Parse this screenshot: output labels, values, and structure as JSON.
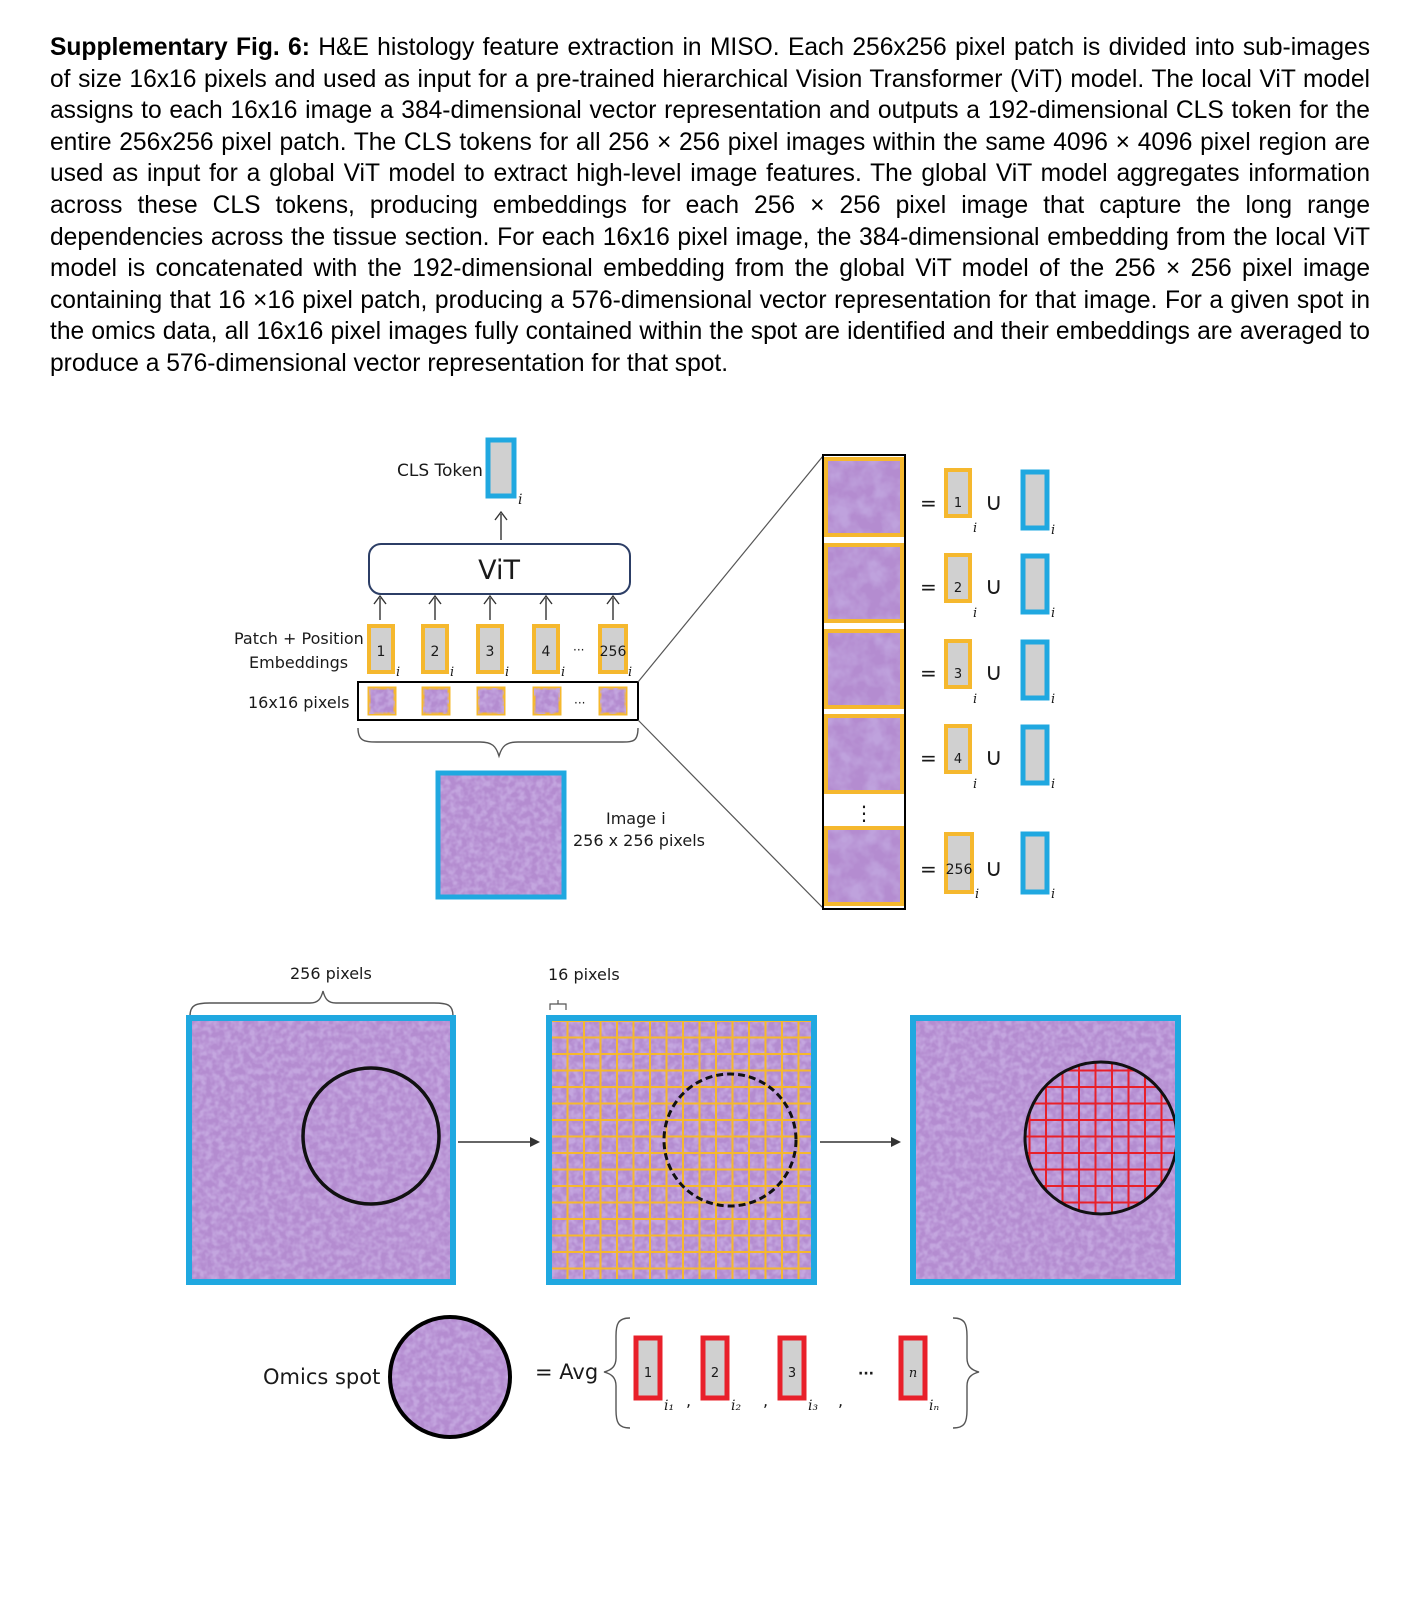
{
  "caption": {
    "label": "Supplementary Fig. 6:",
    "text": " H&E histology feature extraction in MISO. Each 256x256 pixel patch is divided into sub-images of size 16x16 pixels and used as input for a pre-trained hierarchical Vision Transformer (ViT) model. The local ViT model assigns to each 16x16 image a 384-dimensional vector representation and outputs a 192-dimensional CLS token for the entire 256x256 pixel patch. The CLS tokens for all 256 × 256 pixel images within the same 4096 × 4096 pixel region are used as input for a global ViT model to extract high-level image features. The global ViT model aggregates information across these CLS tokens, producing embeddings for each 256 × 256 pixel image that capture the long range dependencies across the tissue section. For each 16x16 pixel image, the 384-dimensional embedding from the local ViT model is concatenated with the 192-dimensional embedding from the global ViT model of the 256 × 256 pixel image containing that 16 ×16 pixel patch, producing a 576-dimensional vector representation for that image. For a given spot in the omics data, all 16x16 pixel images fully contained within the spot are identified and their embeddings are averaged to produce a 576-dimensional vector representation for that spot."
  },
  "diagram": {
    "cls_token_label": "CLS Token",
    "subscript_i": "i",
    "vit_label": "ViT",
    "patch_embed_label_1": "Patch + Position",
    "patch_embed_label_2": "Embeddings",
    "pixels16_row_label": "16x16 pixels",
    "embed_tokens": [
      "1",
      "2",
      "3",
      "4",
      "256"
    ],
    "ellipsis": "···",
    "vdots": "⋮",
    "image_label_1": "Image i",
    "image_label_2": "256 x 256 pixels",
    "equals": "=",
    "union": "∪",
    "right_tokens": [
      "1",
      "2",
      "3",
      "4",
      "256"
    ],
    "pixels256_label": "256 pixels",
    "pixels16_label": "16 pixels",
    "omics_spot_label": "Omics spot",
    "avg_label": "= Avg",
    "avg_tokens": [
      "1",
      "2",
      "3",
      "n"
    ],
    "avg_subs": [
      "i₁",
      "i₂",
      "i₃",
      "iₙ"
    ],
    "comma": ",",
    "avg_ellipsis": "···",
    "colors": {
      "orange": "#f5b82e",
      "blue": "#20a8e0",
      "red": "#e8202a",
      "gray_fill": "#d0d0d0",
      "tissue": "#b48cd0"
    }
  }
}
